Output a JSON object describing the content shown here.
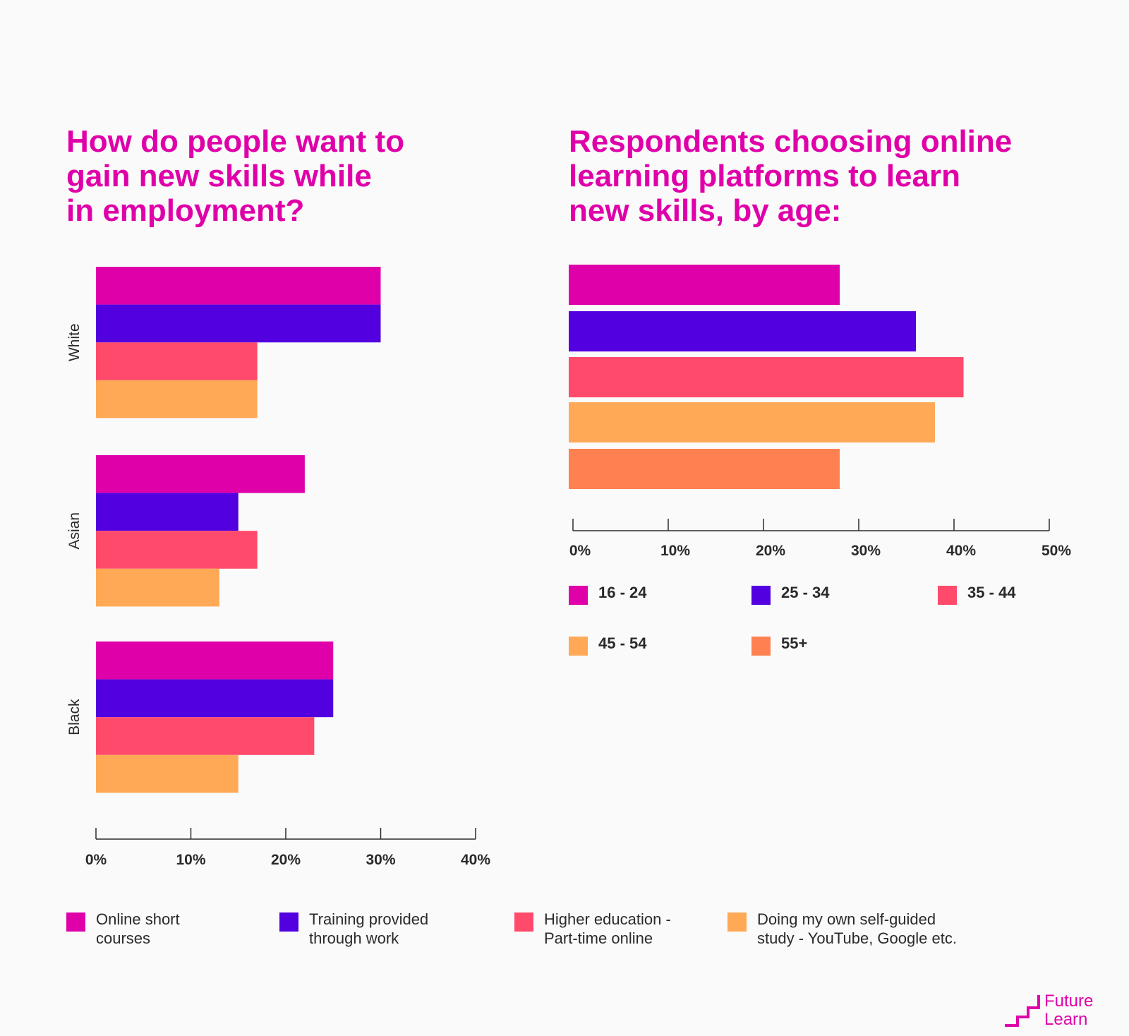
{
  "chart_data": [
    {
      "type": "bar",
      "orientation": "horizontal",
      "title": "How do people want to\ngain new skills while\nin employment?",
      "categories": [
        "White",
        "Asian",
        "Black"
      ],
      "series": [
        {
          "name": "Online short\ncourses",
          "color": "#df00a9",
          "values": [
            30,
            22,
            25
          ]
        },
        {
          "name": "Training provided\nthrough work",
          "color": "#5200e0",
          "values": [
            30,
            15,
            25
          ]
        },
        {
          "name": "Higher education -\nPart-time online",
          "color": "#ff4a6b",
          "values": [
            17,
            17,
            23
          ]
        },
        {
          "name": "Doing my own self-guided\nstudy - YouTube, Google etc.",
          "color": "#ffa957",
          "values": [
            17,
            13,
            15
          ]
        }
      ],
      "xlim": [
        0,
        40
      ],
      "xticks": [
        "0%",
        "10%",
        "20%",
        "30%",
        "40%"
      ],
      "legend": "bottom",
      "grid": false
    },
    {
      "type": "bar",
      "orientation": "horizontal",
      "title": "Respondents choosing online\nlearning platforms to learn\nnew skills, by age:",
      "series": [
        {
          "name": "16 - 24",
          "color": "#df00a9",
          "value": 28
        },
        {
          "name": "25 - 34",
          "color": "#5200e0",
          "value": 36
        },
        {
          "name": "35 - 44",
          "color": "#ff4a6b",
          "value": 41
        },
        {
          "name": "45 - 54",
          "color": "#ffa957",
          "value": 38
        },
        {
          "name": "55+",
          "color": "#ff8050",
          "value": 28
        }
      ],
      "xlim": [
        0,
        50
      ],
      "xticks": [
        "0%",
        "10%",
        "20%",
        "30%",
        "40%",
        "50%"
      ],
      "legend": "bottom",
      "grid": false
    }
  ],
  "logo": {
    "text": "Future\nLearn",
    "color": "#df00a9"
  }
}
